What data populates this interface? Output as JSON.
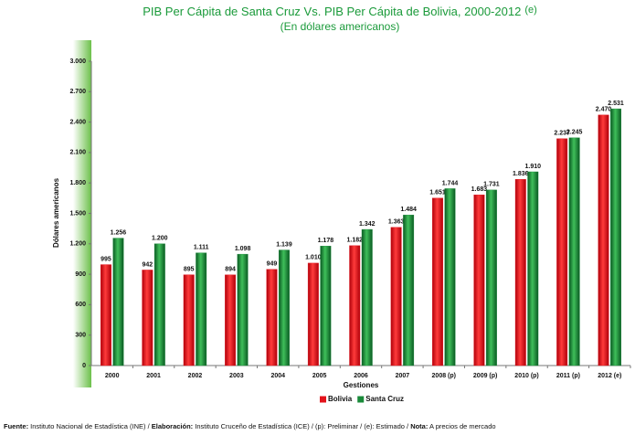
{
  "chart_data": {
    "type": "bar",
    "title": "PIB Per Cápita de Santa Cruz Vs. PIB Per Cápita de Bolivia, 2000-2012",
    "title_note": "(e)",
    "subtitle": "(En dólares americanos)",
    "y_label": "Dólares americanos",
    "x_label": "Gestiones",
    "categories": [
      "2000",
      "2001",
      "2002",
      "2003",
      "2004",
      "2005",
      "2006",
      "2007",
      "2008 (p)",
      "2009 (p)",
      "2010 (p)",
      "2011 (p)",
      "2012 (e)"
    ],
    "series": [
      {
        "name": "Bolivia",
        "color": "#e3131b",
        "values": [
          995,
          942,
          895,
          894,
          949,
          1010,
          1182,
          1363,
          1651,
          1683,
          1836,
          2237,
          2470
        ],
        "value_labels": [
          "995",
          "942",
          "895",
          "894",
          "949",
          "1.010",
          "1.182",
          "1.363",
          "1.651",
          "1.683",
          "1.836",
          "2.237",
          "2.470"
        ]
      },
      {
        "name": "Santa Cruz",
        "color": "#1a8a3a",
        "values": [
          1256,
          1200,
          1111,
          1098,
          1139,
          1178,
          1342,
          1484,
          1744,
          1731,
          1910,
          2245,
          2531
        ],
        "value_labels": [
          "1.256",
          "1.200",
          "1.111",
          "1.098",
          "1.139",
          "1.178",
          "1.342",
          "1.484",
          "1.744",
          "1.731",
          "1.910",
          "2.245",
          "2.531"
        ]
      }
    ],
    "ylim": [
      0,
      3000
    ],
    "yticks": [
      0,
      300,
      600,
      900,
      {
        "value": 1200,
        "label": "1.200"
      },
      {
        "value": 1500,
        "label": "1.500"
      },
      {
        "value": 1800,
        "label": "1.800"
      },
      {
        "value": 2100,
        "label": "2.100"
      },
      {
        "value": 2400,
        "label": "2.400"
      },
      {
        "value": 2700,
        "label": "2.700"
      },
      {
        "value": 3000,
        "label": "3.000"
      }
    ],
    "grid": false,
    "legend": "bottom",
    "footnote": [
      "Fuente:",
      " Instituto Nacional de Estadística (INE) / ",
      "Elaboración:",
      " Instituto Cruceño de Estadística (ICE) / (p): Preliminar / (e): Estimado / ",
      "Nota:",
      " A precios de mercado"
    ]
  }
}
